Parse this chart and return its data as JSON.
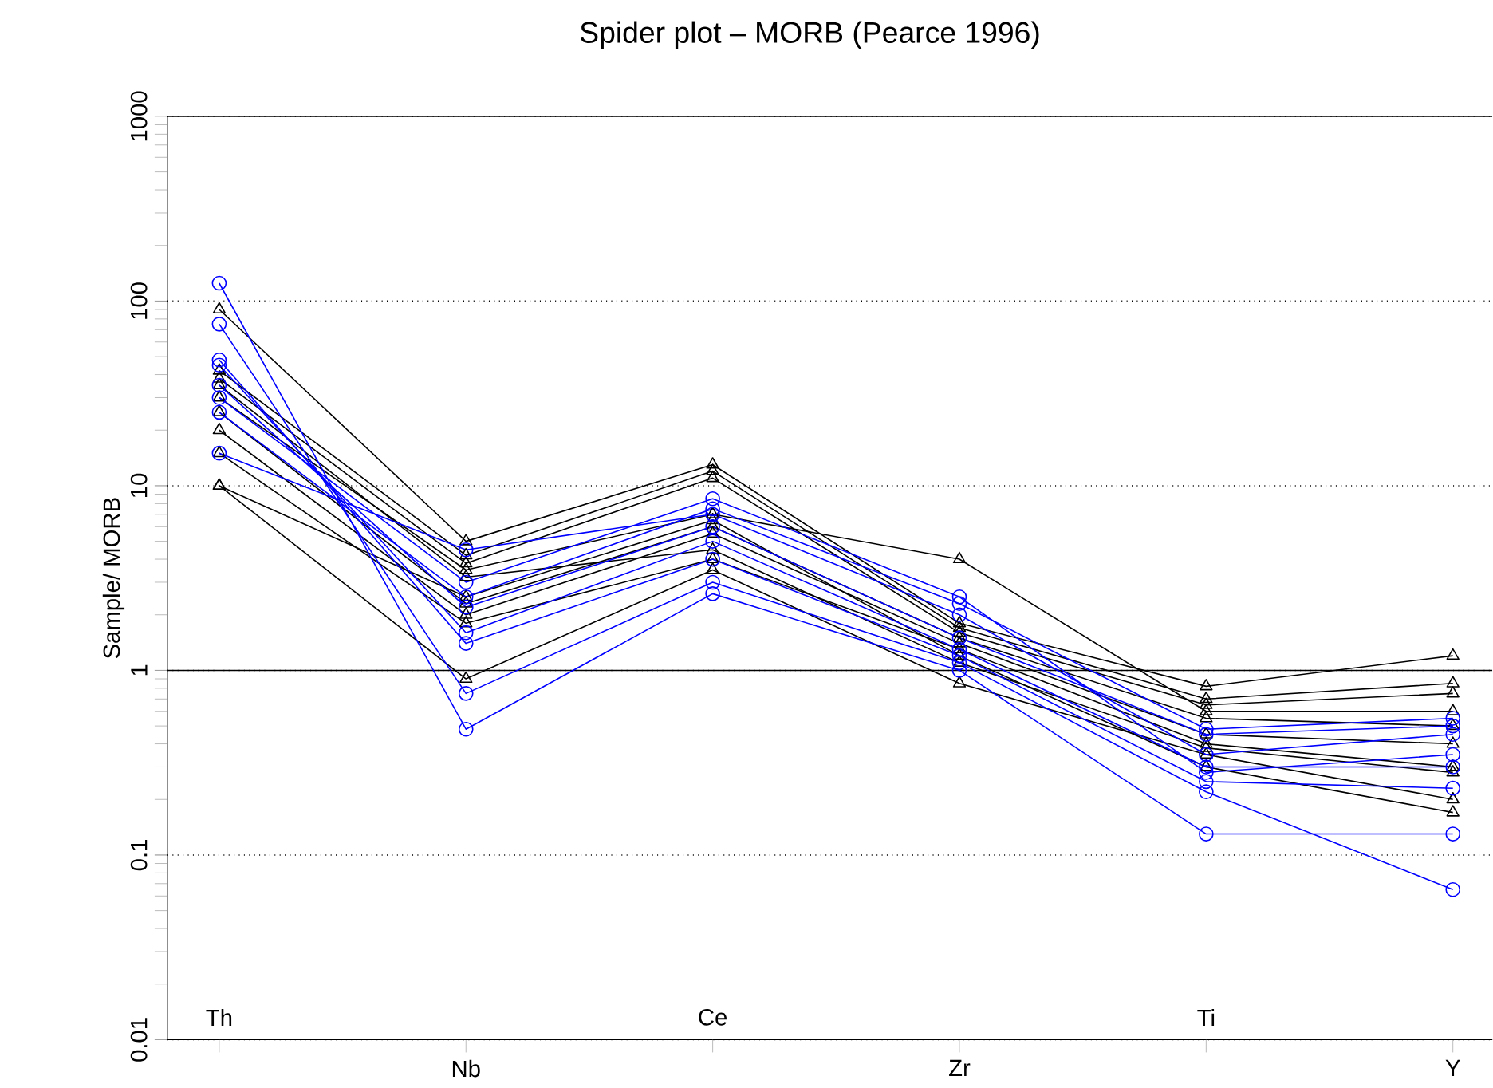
{
  "chart_data": {
    "type": "line",
    "title": "Spider plot – MORB (Pearce 1996)",
    "ylabel": "Sample/ MORB",
    "categories": [
      "Th",
      "Nb",
      "Ce",
      "Zr",
      "Ti",
      "Y"
    ],
    "log": "y",
    "ylim": [
      0.01,
      1000
    ],
    "yticks": [
      0.01,
      0.1,
      1,
      10,
      100,
      1000
    ],
    "grid": "y",
    "line_style": "solid",
    "ref_lines": [
      {
        "axis": "y",
        "value": 1,
        "color": "#000000"
      },
      {
        "axis": "y",
        "value": 1000,
        "color": "#000000"
      }
    ],
    "series": [
      {
        "color": "#000000",
        "marker": "triangle",
        "values": [
          90,
          5,
          13,
          1.8,
          0.82,
          1.2
        ]
      },
      {
        "color": "#000000",
        "marker": "triangle",
        "values": [
          42,
          4.2,
          12,
          1.7,
          0.7,
          0.85
        ]
      },
      {
        "color": "#000000",
        "marker": "triangle",
        "values": [
          38,
          3.8,
          11,
          1.6,
          0.65,
          0.75
        ]
      },
      {
        "color": "#000000",
        "marker": "triangle",
        "values": [
          30,
          3.5,
          7,
          4,
          0.6,
          0.6
        ]
      },
      {
        "color": "#000000",
        "marker": "triangle",
        "values": [
          25,
          2.3,
          6,
          1.5,
          0.55,
          0.5
        ]
      },
      {
        "color": "#000000",
        "marker": "triangle",
        "values": [
          20,
          2,
          5.5,
          1.4,
          0.45,
          0.4
        ]
      },
      {
        "color": "#000000",
        "marker": "triangle",
        "values": [
          15,
          1.8,
          4,
          1.3,
          0.4,
          0.3
        ]
      },
      {
        "color": "#000000",
        "marker": "triangle",
        "values": [
          10,
          0.9,
          3.5,
          0.85,
          0.35,
          0.2
        ]
      },
      {
        "color": "#000000",
        "marker": "triangle",
        "values": [
          10,
          2.5,
          6.5,
          1.2,
          0.3,
          0.17
        ]
      },
      {
        "color": "#000000",
        "marker": "triangle",
        "values": [
          35,
          3.2,
          4.5,
          1.1,
          0.38,
          0.28
        ]
      },
      {
        "color": "#0000ff",
        "marker": "circle",
        "values": [
          125,
          0.48,
          2.6,
          1,
          0.13,
          0.13
        ]
      },
      {
        "color": "#0000ff",
        "marker": "circle",
        "values": [
          75,
          0.75,
          3,
          1.1,
          0.22,
          0.065
        ]
      },
      {
        "color": "#0000ff",
        "marker": "circle",
        "values": [
          48,
          1.4,
          4,
          1.2,
          0.25,
          0.23
        ]
      },
      {
        "color": "#0000ff",
        "marker": "circle",
        "values": [
          45,
          1.6,
          5,
          1.3,
          0.3,
          0.3
        ]
      },
      {
        "color": "#0000ff",
        "marker": "circle",
        "values": [
          35,
          2.2,
          6,
          1.5,
          0.45,
          0.5
        ]
      },
      {
        "color": "#0000ff",
        "marker": "circle",
        "values": [
          25,
          2.5,
          7.5,
          2.3,
          0.48,
          0.55
        ]
      },
      {
        "color": "#0000ff",
        "marker": "circle",
        "values": [
          30,
          3,
          8.5,
          2.5,
          0.28,
          0.35
        ]
      },
      {
        "color": "#0000ff",
        "marker": "circle",
        "values": [
          15,
          4.5,
          7,
          2,
          0.35,
          0.45
        ]
      }
    ]
  }
}
